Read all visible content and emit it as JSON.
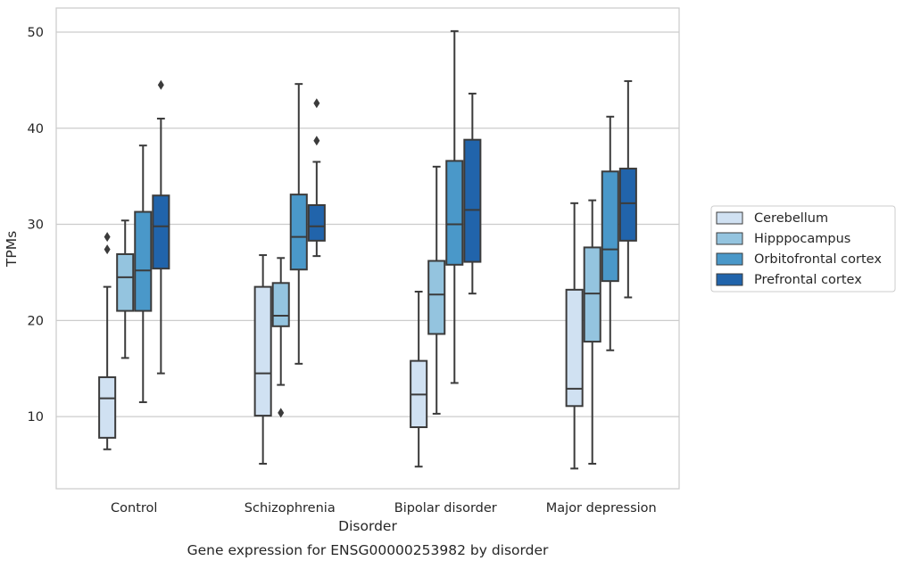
{
  "caption": "Gene expression for ENSG00000253982 by disorder",
  "chart_data": {
    "type": "box",
    "title": "",
    "xlabel": "Disorder",
    "ylabel": "TPMs",
    "categories": [
      "Control",
      "Schizophrenia",
      "Bipolar disorder",
      "Major depression"
    ],
    "ylim": [
      2.5,
      52.5
    ],
    "yticks": [
      10,
      20,
      30,
      40,
      50
    ],
    "grid": "horizontal",
    "legend_position": "right",
    "colors": [
      "#d0e1f2",
      "#94c4df",
      "#4a98c9",
      "#2164ab"
    ],
    "series": [
      {
        "name": "Cerebellum",
        "boxes": [
          {
            "whislo": 6.6,
            "q1": 7.8,
            "med": 11.9,
            "q3": 14.1,
            "whishi": 23.5,
            "fliers": [
              27.4,
              28.7
            ]
          },
          {
            "whislo": 5.1,
            "q1": 10.1,
            "med": 14.5,
            "q3": 23.5,
            "whishi": 26.8,
            "fliers": []
          },
          {
            "whislo": 4.8,
            "q1": 8.9,
            "med": 12.3,
            "q3": 15.8,
            "whishi": 23.0,
            "fliers": []
          },
          {
            "whislo": 4.6,
            "q1": 11.1,
            "med": 12.9,
            "q3": 23.2,
            "whishi": 32.2,
            "fliers": []
          }
        ]
      },
      {
        "name": "Hipppocampus",
        "boxes": [
          {
            "whislo": 16.1,
            "q1": 21.0,
            "med": 24.5,
            "q3": 26.9,
            "whishi": 30.4,
            "fliers": []
          },
          {
            "whislo": 13.3,
            "q1": 19.4,
            "med": 20.5,
            "q3": 23.9,
            "whishi": 26.5,
            "fliers": [
              10.4
            ]
          },
          {
            "whislo": 10.3,
            "q1": 18.6,
            "med": 22.7,
            "q3": 26.2,
            "whishi": 36.0,
            "fliers": []
          },
          {
            "whislo": 5.1,
            "q1": 17.8,
            "med": 22.8,
            "q3": 27.6,
            "whishi": 32.5,
            "fliers": []
          }
        ]
      },
      {
        "name": "Orbitofrontal cortex",
        "boxes": [
          {
            "whislo": 11.5,
            "q1": 21.0,
            "med": 25.2,
            "q3": 31.3,
            "whishi": 38.2,
            "fliers": []
          },
          {
            "whislo": 15.5,
            "q1": 25.3,
            "med": 28.7,
            "q3": 33.1,
            "whishi": 44.6,
            "fliers": []
          },
          {
            "whislo": 13.5,
            "q1": 25.8,
            "med": 30.0,
            "q3": 36.6,
            "whishi": 50.1,
            "fliers": []
          },
          {
            "whislo": 16.9,
            "q1": 24.1,
            "med": 27.4,
            "q3": 35.5,
            "whishi": 41.2,
            "fliers": []
          }
        ]
      },
      {
        "name": "Prefrontal cortex",
        "boxes": [
          {
            "whislo": 14.5,
            "q1": 25.4,
            "med": 29.8,
            "q3": 33.0,
            "whishi": 41.0,
            "fliers": [
              44.5
            ]
          },
          {
            "whislo": 26.7,
            "q1": 28.3,
            "med": 29.8,
            "q3": 32.0,
            "whishi": 36.5,
            "fliers": [
              38.7,
              42.6
            ]
          },
          {
            "whislo": 22.8,
            "q1": 26.1,
            "med": 31.5,
            "q3": 38.8,
            "whishi": 43.6,
            "fliers": []
          },
          {
            "whislo": 22.4,
            "q1": 28.3,
            "med": 32.2,
            "q3": 35.8,
            "whishi": 44.9,
            "fliers": []
          }
        ]
      }
    ]
  }
}
